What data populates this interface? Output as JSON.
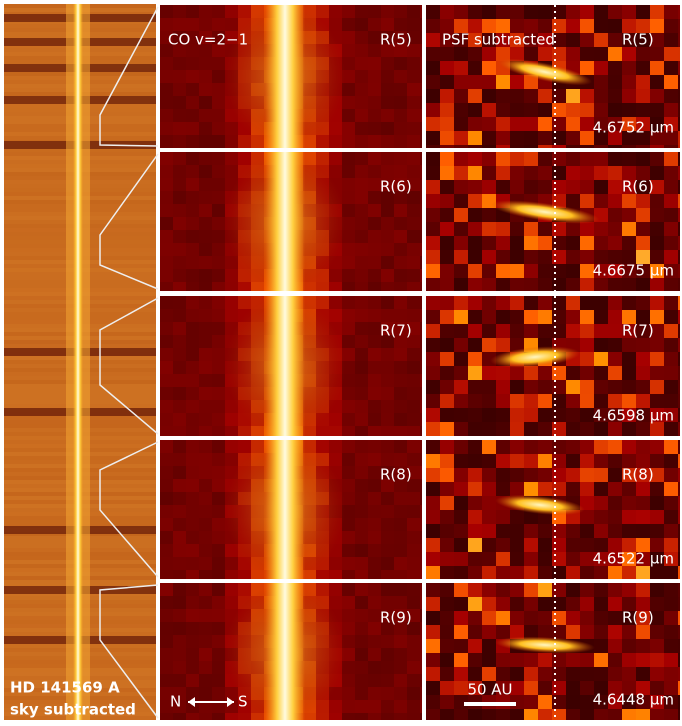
{
  "left_panel": {
    "labels": [
      "HD 141569 A",
      "sky subtracted"
    ]
  },
  "middle_panel": {
    "title": "CO v=2−1",
    "orientation": {
      "left": "N",
      "right": "S"
    },
    "lines": [
      "R(5)",
      "R(6)",
      "R(7)",
      "R(8)",
      "R(9)"
    ]
  },
  "right_panel": {
    "title": "PSF subtracted",
    "lines": [
      "R(5)",
      "R(6)",
      "R(7)",
      "R(8)",
      "R(9)"
    ],
    "wavelengths": [
      "4.6752 μm",
      "4.6675 μm",
      "4.6598 μm",
      "4.6522 μm",
      "4.6448 μm"
    ],
    "scale_bar": "50 AU"
  }
}
